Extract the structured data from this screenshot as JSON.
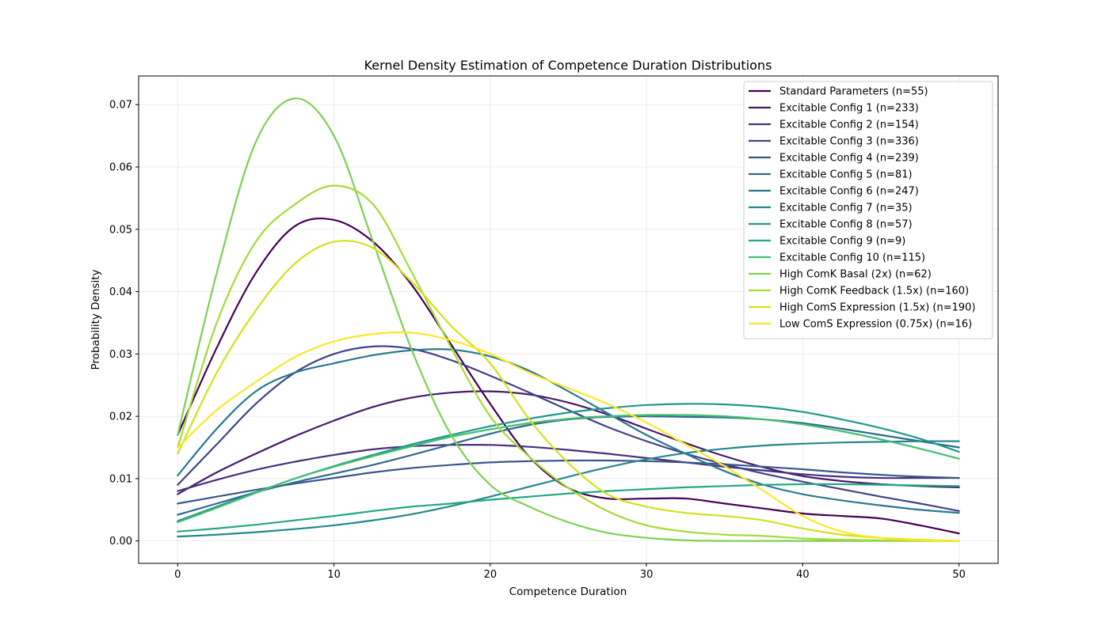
{
  "chart_data": {
    "type": "line",
    "title": "Kernel Density Estimation of Competence Duration Distributions",
    "xlabel": "Competence Duration",
    "ylabel": "Probability Density",
    "xlim": [
      -2.5,
      52.5
    ],
    "ylim": [
      -0.0036,
      0.0746
    ],
    "xticks": [
      0,
      10,
      20,
      30,
      40,
      50
    ],
    "xtick_labels": [
      "0",
      "10",
      "20",
      "30",
      "40",
      "50"
    ],
    "yticks": [
      0,
      0.01,
      0.02,
      0.03,
      0.04,
      0.05,
      0.06,
      0.07
    ],
    "ytick_labels": [
      "0.00",
      "0.01",
      "0.02",
      "0.03",
      "0.04",
      "0.05",
      "0.06",
      "0.07"
    ],
    "grid": true,
    "legend_position": "upper-right",
    "x": [
      0,
      2.5,
      5,
      7.5,
      10,
      12.5,
      15,
      17.5,
      20,
      22.5,
      25,
      27.5,
      30,
      32.5,
      35,
      37.5,
      40,
      42.5,
      45,
      47.5,
      50
    ],
    "series": [
      {
        "name": "Standard Parameters (n=55)",
        "color": "#440154",
        "values": [
          0.017,
          0.031,
          0.043,
          0.0505,
          0.0515,
          0.048,
          0.041,
          0.0315,
          0.022,
          0.0135,
          0.0085,
          0.0068,
          0.0068,
          0.0068,
          0.006,
          0.0052,
          0.0044,
          0.004,
          0.0036,
          0.0025,
          0.0012
        ]
      },
      {
        "name": "Excitable Config 1 (n=233)",
        "color": "#481a6c",
        "values": [
          0.0075,
          0.011,
          0.014,
          0.0168,
          0.0193,
          0.0215,
          0.023,
          0.0238,
          0.024,
          0.0235,
          0.0222,
          0.0203,
          0.018,
          0.0157,
          0.0136,
          0.0118,
          0.0104,
          0.0096,
          0.0091,
          0.0088,
          0.0086
        ]
      },
      {
        "name": "Excitable Config 2 (n=154)",
        "color": "#472f7d",
        "values": [
          0.008,
          0.0098,
          0.0114,
          0.0127,
          0.0138,
          0.0147,
          0.0152,
          0.0154,
          0.0154,
          0.0151,
          0.0146,
          0.014,
          0.0133,
          0.0126,
          0.0119,
          0.0113,
          0.0107,
          0.0103,
          0.0101,
          0.0101,
          0.0101
        ]
      },
      {
        "name": "Excitable Config 3 (n=336)",
        "color": "#414487",
        "values": [
          0.009,
          0.0155,
          0.022,
          0.027,
          0.03,
          0.0312,
          0.0308,
          0.029,
          0.0265,
          0.0238,
          0.021,
          0.0183,
          0.016,
          0.014,
          0.0123,
          0.0108,
          0.0095,
          0.0083,
          0.0071,
          0.006,
          0.0048
        ]
      },
      {
        "name": "Excitable Config 4 (n=239)",
        "color": "#39568c",
        "values": [
          0.006,
          0.0071,
          0.0082,
          0.0092,
          0.0101,
          0.011,
          0.0117,
          0.0122,
          0.0126,
          0.0128,
          0.0129,
          0.0129,
          0.0128,
          0.0126,
          0.0123,
          0.0119,
          0.0115,
          0.011,
          0.0106,
          0.0103,
          0.0101
        ]
      },
      {
        "name": "Excitable Config 5 (n=81)",
        "color": "#31688e",
        "values": [
          0.0042,
          0.006,
          0.0078,
          0.0094,
          0.0108,
          0.0122,
          0.0138,
          0.0155,
          0.0172,
          0.0186,
          0.0195,
          0.0199,
          0.02,
          0.0199,
          0.0198,
          0.0195,
          0.0189,
          0.018,
          0.017,
          0.016,
          0.015
        ]
      },
      {
        "name": "Excitable Config 6 (n=247)",
        "color": "#2a788e",
        "values": [
          0.0105,
          0.018,
          0.024,
          0.027,
          0.0285,
          0.0298,
          0.0306,
          0.0307,
          0.0296,
          0.0273,
          0.024,
          0.0205,
          0.017,
          0.014,
          0.0112,
          0.009,
          0.0075,
          0.0065,
          0.0057,
          0.005,
          0.0045
        ]
      },
      {
        "name": "Excitable Config 7 (n=35)",
        "color": "#23888e",
        "values": [
          0.0007,
          0.001,
          0.0014,
          0.0019,
          0.0025,
          0.0033,
          0.0043,
          0.0056,
          0.0071,
          0.0087,
          0.0103,
          0.0118,
          0.0131,
          0.0141,
          0.0148,
          0.0153,
          0.0156,
          0.0158,
          0.0159,
          0.016,
          0.016
        ]
      },
      {
        "name": "Excitable Config 8 (n=57)",
        "color": "#1f988b",
        "values": [
          0.0032,
          0.0055,
          0.0078,
          0.01,
          0.012,
          0.0138,
          0.0155,
          0.017,
          0.0184,
          0.0196,
          0.0206,
          0.0213,
          0.0218,
          0.022,
          0.0219,
          0.0215,
          0.0207,
          0.0195,
          0.0181,
          0.0164,
          0.0143
        ]
      },
      {
        "name": "Excitable Config 9 (n=9)",
        "color": "#22a884",
        "values": [
          0.0015,
          0.002,
          0.0026,
          0.0033,
          0.004,
          0.0048,
          0.0055,
          0.006,
          0.0066,
          0.0071,
          0.0076,
          0.008,
          0.0083,
          0.0086,
          0.0088,
          0.009,
          0.0091,
          0.0091,
          0.009,
          0.0089,
          0.0088
        ]
      },
      {
        "name": "Excitable Config 10 (n=115)",
        "color": "#44bf70",
        "values": [
          0.003,
          0.0053,
          0.0077,
          0.01,
          0.0119,
          0.0136,
          0.0152,
          0.0167,
          0.0179,
          0.0189,
          0.0196,
          0.02,
          0.0202,
          0.0202,
          0.02,
          0.0195,
          0.0187,
          0.0176,
          0.0163,
          0.0148,
          0.0132
        ]
      },
      {
        "name": "High ComK Basal (2x) (n=62)",
        "color": "#7ad151",
        "values": [
          0.017,
          0.043,
          0.064,
          0.071,
          0.065,
          0.048,
          0.0305,
          0.017,
          0.009,
          0.0055,
          0.003,
          0.0013,
          0.0005,
          0.0001,
          0.0,
          0.0,
          0.0,
          0.0,
          0.0,
          0.0,
          0.0
        ]
      },
      {
        "name": "High ComK Feedback (1.5x) (n=160)",
        "color": "#a5db36",
        "values": [
          0.015,
          0.035,
          0.048,
          0.054,
          0.057,
          0.054,
          0.043,
          0.031,
          0.02,
          0.0135,
          0.0085,
          0.0048,
          0.0025,
          0.0015,
          0.001,
          0.0008,
          0.0004,
          0.0002,
          0.0001,
          0.0,
          0.0
        ]
      },
      {
        "name": "High ComS Expression (1.5x) (n=190)",
        "color": "#d2e21b",
        "values": [
          0.014,
          0.027,
          0.037,
          0.0445,
          0.048,
          0.047,
          0.0415,
          0.0345,
          0.0285,
          0.0195,
          0.0125,
          0.0075,
          0.0055,
          0.0045,
          0.004,
          0.0033,
          0.002,
          0.001,
          0.0005,
          0.0002,
          0.0
        ]
      },
      {
        "name": "Low ComS Expression (0.75x) (n=16)",
        "color": "#fde725",
        "values": [
          0.015,
          0.021,
          0.0255,
          0.0295,
          0.032,
          0.0332,
          0.0334,
          0.0322,
          0.03,
          0.027,
          0.0245,
          0.022,
          0.019,
          0.0155,
          0.012,
          0.008,
          0.004,
          0.0015,
          0.0005,
          0.0001,
          0.0
        ]
      }
    ]
  }
}
